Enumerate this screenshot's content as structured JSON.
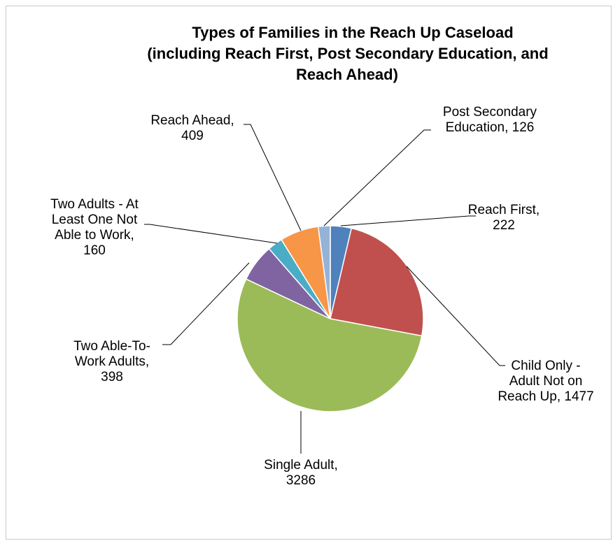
{
  "chart_data": {
    "type": "pie",
    "title_lines": [
      "Types of Families in the Reach Up Caseload",
      "(including Reach First, Post Secondary Education, and",
      "Reach Ahead)"
    ],
    "slices": [
      {
        "name": "Reach First",
        "value": 222,
        "color": "#4f81bd",
        "label_lines": [
          "Reach First,",
          "222"
        ]
      },
      {
        "name": "Child Only - Adult Not on Reach Up",
        "value": 1477,
        "color": "#c0504d",
        "label_lines": [
          "Child Only -",
          "Adult Not on",
          "Reach Up, 1477"
        ]
      },
      {
        "name": "Single Adult",
        "value": 3286,
        "color": "#9bbb59",
        "label_lines": [
          "Single Adult,",
          "3286"
        ]
      },
      {
        "name": "Two Able-To-Work Adults",
        "value": 398,
        "color": "#8064a2",
        "label_lines": [
          "Two Able-To-",
          "Work Adults,",
          "398"
        ]
      },
      {
        "name": "Two Adults - At Least One Not Able to Work",
        "value": 160,
        "color": "#4bacc6",
        "label_lines": [
          "Two Adults - At",
          "Least One Not",
          "Able to Work,",
          "160"
        ]
      },
      {
        "name": "Reach Ahead",
        "value": 409,
        "color": "#f79646",
        "label_lines": [
          "Reach Ahead,",
          "409"
        ]
      },
      {
        "name": "Post Secondary Education",
        "value": 126,
        "color": "#95b3d7",
        "label_lines": [
          "Post Secondary",
          "Education, 126"
        ]
      }
    ],
    "start_angle_deg": 0,
    "direction": "clockwise",
    "legend": "none"
  }
}
